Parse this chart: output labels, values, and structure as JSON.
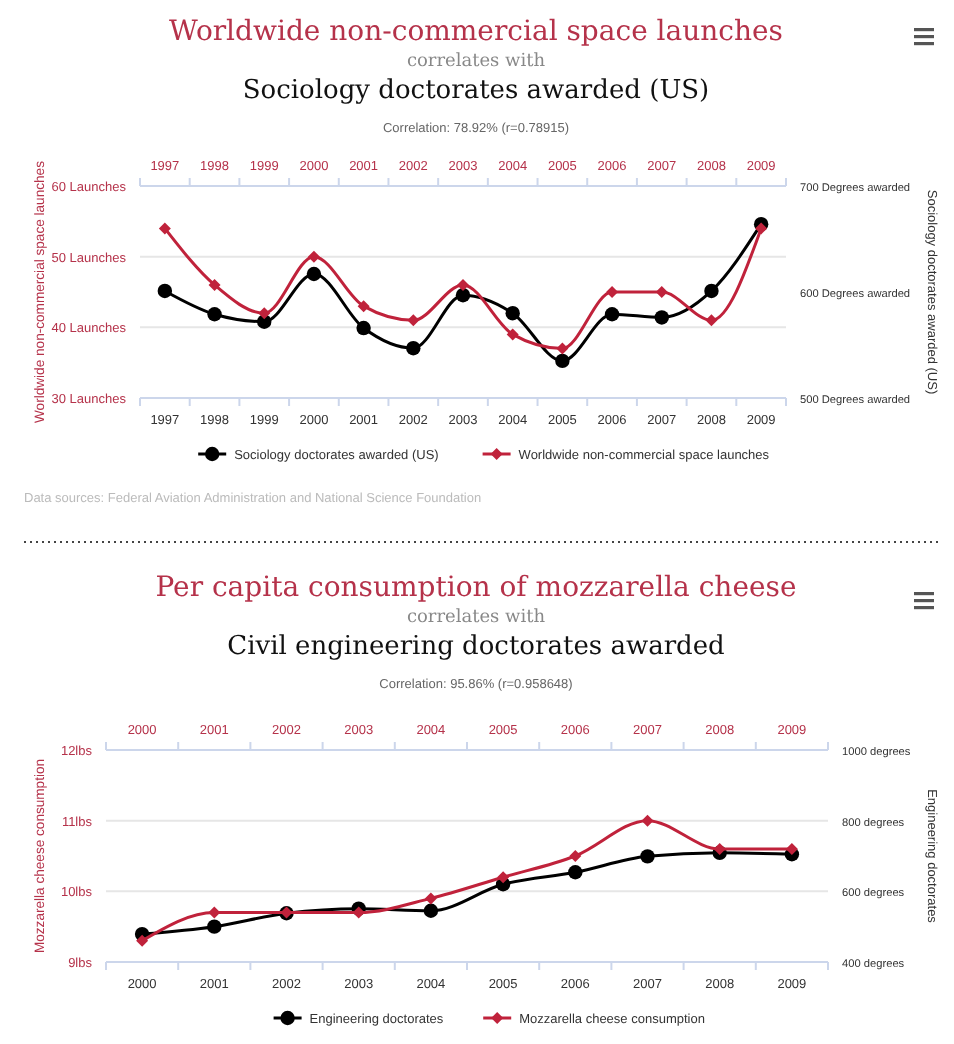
{
  "chart_data": [
    {
      "type": "line",
      "title": "Worldwide non-commercial space launches",
      "subtitle": "Sociology doctorates awarded (US)",
      "annotations": [
        "correlates with",
        "Correlation: 78.92% (r=0.78915)",
        "Data sources: Federal Aviation Administration and National Science Foundation"
      ],
      "ylabel": "Worldwide non-commercial space launches",
      "y2label": "Sociology doctorates awarded (US)",
      "categories": [
        "1997",
        "1998",
        "1999",
        "2000",
        "2001",
        "2002",
        "2003",
        "2004",
        "2005",
        "2006",
        "2007",
        "2008",
        "2009"
      ],
      "series": [
        {
          "name": "Sociology doctorates awarded (US)",
          "color": "#000000",
          "axis": "y2",
          "marker": "circle",
          "values": [
            601,
            579,
            572,
            617,
            566,
            547,
            597,
            580,
            535,
            579,
            576,
            601,
            664
          ]
        },
        {
          "name": "Worldwide non-commercial space launches",
          "color": "#c0223b",
          "marker": "diamond",
          "values": [
            54,
            46,
            42,
            50,
            43,
            41,
            46,
            39,
            37,
            45,
            45,
            41,
            54
          ]
        }
      ],
      "ylim": [
        30,
        60
      ],
      "yticks": [
        {
          "value": 30,
          "label": "30 Launches"
        },
        {
          "value": 40,
          "label": "40 Launches"
        },
        {
          "value": 50,
          "label": "50 Launches"
        },
        {
          "value": 60,
          "label": "60 Launches"
        }
      ],
      "y2lim": [
        500,
        700
      ],
      "y2ticks": [
        {
          "value": 500,
          "label": "500 Degrees awarded"
        },
        {
          "value": 600,
          "label": "600 Degrees awarded"
        },
        {
          "value": 700,
          "label": "700 Degrees awarded"
        }
      ],
      "grid": "y",
      "legend": "bottom",
      "line_style": "solid"
    },
    {
      "type": "line",
      "title": "Per capita consumption of mozzarella cheese",
      "subtitle": "Civil engineering doctorates awarded",
      "annotations": [
        "correlates with",
        "Correlation: 95.86% (r=0.958648)"
      ],
      "ylabel": "Mozzarella cheese consumption",
      "y2label": "Engineering doctorates",
      "categories": [
        "2000",
        "2001",
        "2002",
        "2003",
        "2004",
        "2005",
        "2006",
        "2007",
        "2008",
        "2009"
      ],
      "series": [
        {
          "name": "Engineering doctorates",
          "color": "#000000",
          "axis": "y2",
          "marker": "circle",
          "values": [
            479,
            500,
            538,
            551,
            545,
            620,
            654,
            699,
            709,
            705
          ]
        },
        {
          "name": "Mozzarella cheese consumption",
          "color": "#c0223b",
          "marker": "diamond",
          "values": [
            9.3,
            9.7,
            9.7,
            9.7,
            9.9,
            10.2,
            10.5,
            11.0,
            10.6,
            10.6
          ]
        }
      ],
      "ylim": [
        9,
        12
      ],
      "yticks": [
        {
          "value": 9,
          "label": "9lbs"
        },
        {
          "value": 10,
          "label": "10lbs"
        },
        {
          "value": 11,
          "label": "11lbs"
        },
        {
          "value": 12,
          "label": "12lbs"
        }
      ],
      "y2lim": [
        400,
        1000
      ],
      "y2ticks": [
        {
          "value": 400,
          "label": "400 degrees"
        },
        {
          "value": 600,
          "label": "600 degrees"
        },
        {
          "value": 800,
          "label": "800 degrees"
        },
        {
          "value": 1000,
          "label": "1000 degrees"
        }
      ],
      "grid": "y",
      "legend": "bottom",
      "line_style": "solid"
    }
  ]
}
